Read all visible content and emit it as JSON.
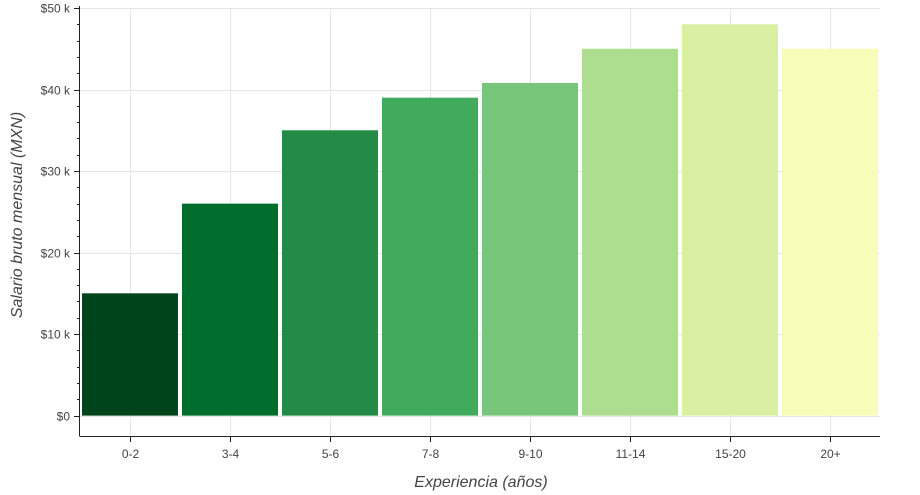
{
  "chart_data": {
    "type": "bar",
    "title": "",
    "xlabel": "Experiencia (años)",
    "ylabel": "Salario bruto mensual (MXN)",
    "categories": [
      "0-2",
      "3-4",
      "5-6",
      "7-8",
      "9-10",
      "11-14",
      "15-20",
      "20+"
    ],
    "values": [
      15000,
      26000,
      35000,
      39000,
      40800,
      45000,
      48000,
      45000
    ],
    "bar_colors": [
      "#00441b",
      "#006d2c",
      "#238b45",
      "#41ab5d",
      "#78c679",
      "#addd8e",
      "#d9f0a3",
      "#f7fcb9"
    ],
    "ylim": [
      -2500,
      50000
    ],
    "yticks": [
      0,
      10000,
      20000,
      30000,
      40000,
      50000
    ],
    "ytick_labels": [
      "$0",
      "$10 k",
      "$20 k",
      "$30 k",
      "$40 k",
      "$50 k"
    ],
    "grid": true
  }
}
